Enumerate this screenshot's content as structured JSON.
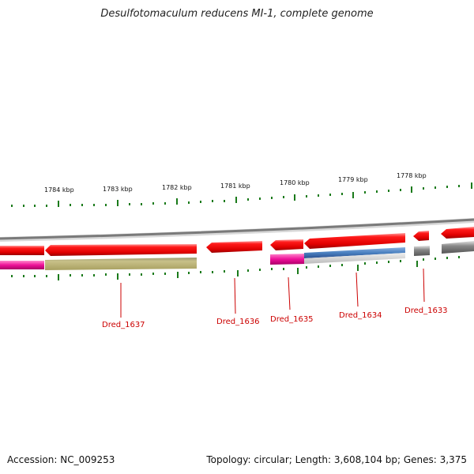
{
  "title": "Desulfotomaculum reducens MI-1, complete genome",
  "coordinate_labels": [
    "1784 kbp",
    "1783 kbp",
    "1782 kbp",
    "1781 kbp",
    "1780 kbp",
    "1779 kbp",
    "1778 kbp"
  ],
  "genes": [
    "Dred_1637",
    "Dred_1636",
    "Dred_1635",
    "Dred_1634",
    "Dred_1633"
  ],
  "footer": {
    "accession": "Accession: NC_009253",
    "summary": "Topology: circular; Length: 3,608,104 bp; Genes: 3,375"
  },
  "colors": {
    "gene": "#ee0000",
    "label": "#cc0000",
    "tick": "#1a7a1a",
    "backbone": "#808080",
    "feature_magenta": "#ee1199",
    "feature_olive": "#b8b070",
    "feature_blue": "#4a80c0",
    "feature_gray": "#707070"
  }
}
